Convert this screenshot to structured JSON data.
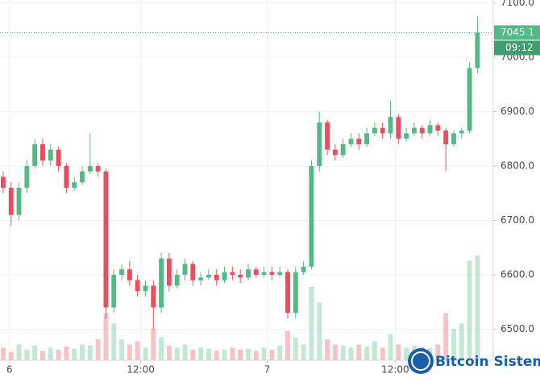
{
  "chart_data": {
    "type": "candlestick",
    "categories": [
      null,
      null,
      null,
      null,
      null,
      null,
      null,
      null,
      null,
      null,
      null,
      null,
      null,
      null,
      null,
      null,
      null,
      null,
      null,
      null,
      null,
      null,
      null,
      null,
      null,
      null,
      null,
      null,
      null,
      null,
      null,
      null,
      null,
      null,
      null,
      null,
      null,
      null,
      null,
      null,
      null,
      null,
      null,
      null,
      null,
      null,
      null,
      null,
      null,
      null,
      null,
      null,
      null,
      null,
      null,
      null,
      null,
      null,
      null,
      null,
      null
    ],
    "open": [
      6780,
      6760,
      6710,
      6760,
      6800,
      6840,
      6810,
      6830,
      6800,
      6760,
      6770,
      6790,
      6800,
      6790,
      6540,
      6600,
      6610,
      6590,
      6570,
      6580,
      6540,
      6630,
      6580,
      6600,
      6620,
      6590,
      6595,
      6600,
      6590,
      6605,
      6600,
      6595,
      6610,
      6600,
      6605,
      6600,
      6605,
      6530,
      6605,
      6615,
      6800,
      6880,
      6830,
      6820,
      6840,
      6850,
      6840,
      6860,
      6870,
      6860,
      6890,
      6850,
      6860,
      6870,
      6860,
      6875,
      6865,
      6840,
      6860,
      6865,
      6980
    ],
    "high": [
      6790,
      6770,
      6770,
      6810,
      6850,
      6850,
      6840,
      6835,
      6805,
      6780,
      6800,
      6860,
      6805,
      6795,
      6610,
      6620,
      6625,
      6600,
      6590,
      6590,
      6640,
      6640,
      6610,
      6630,
      6625,
      6605,
      6610,
      6610,
      6615,
      6615,
      6610,
      6620,
      6615,
      6615,
      6615,
      6615,
      6610,
      6615,
      6625,
      6810,
      6900,
      6885,
      6840,
      6850,
      6860,
      6860,
      6870,
      6880,
      6880,
      6920,
      6895,
      6870,
      6880,
      6875,
      6885,
      6880,
      6870,
      6865,
      6870,
      6990,
      7075
    ],
    "low": [
      6750,
      6690,
      6700,
      6750,
      6795,
      6800,
      6800,
      6790,
      6750,
      6755,
      6765,
      6785,
      6780,
      6520,
      6530,
      6590,
      6580,
      6560,
      6560,
      6500,
      6530,
      6570,
      6575,
      6590,
      6580,
      6580,
      6590,
      6580,
      6585,
      6590,
      6585,
      6590,
      6595,
      6595,
      6590,
      6595,
      6520,
      6520,
      6600,
      6610,
      6790,
      6820,
      6810,
      6815,
      6835,
      6830,
      6835,
      6855,
      6850,
      6850,
      6840,
      6845,
      6855,
      6850,
      6855,
      6855,
      6790,
      6835,
      6850,
      6860,
      6970
    ],
    "close": [
      6760,
      6710,
      6760,
      6800,
      6840,
      6810,
      6830,
      6800,
      6760,
      6770,
      6790,
      6800,
      6790,
      6540,
      6600,
      6610,
      6590,
      6570,
      6580,
      6540,
      6630,
      6580,
      6600,
      6620,
      6590,
      6595,
      6600,
      6590,
      6605,
      6600,
      6595,
      6610,
      6600,
      6605,
      6600,
      6605,
      6530,
      6605,
      6615,
      6800,
      6880,
      6830,
      6820,
      6840,
      6850,
      6840,
      6860,
      6870,
      6860,
      6890,
      6850,
      6860,
      6870,
      6860,
      6875,
      6865,
      6840,
      6860,
      6865,
      6980,
      7045
    ],
    "volume": [
      12,
      8,
      15,
      10,
      14,
      9,
      12,
      10,
      13,
      11,
      15,
      14,
      20,
      45,
      35,
      20,
      15,
      18,
      12,
      30,
      22,
      14,
      12,
      15,
      10,
      12,
      11,
      9,
      10,
      12,
      10,
      11,
      9,
      12,
      10,
      14,
      28,
      22,
      15,
      70,
      55,
      20,
      15,
      14,
      12,
      15,
      13,
      18,
      12,
      25,
      15,
      12,
      14,
      13,
      12,
      15,
      45,
      30,
      35,
      95,
      100
    ],
    "up_color": "#53b987",
    "down_color": "#eb4d5c",
    "xlim": [
      -0.4,
      62
    ],
    "xticks": [
      {
        "value": 0.8,
        "label": "6"
      },
      {
        "value": 17.4,
        "label": "12:00"
      },
      {
        "value": 33.4,
        "label": "7"
      },
      {
        "value": 49.6,
        "label": "12:00"
      }
    ],
    "ylim": [
      6443,
      7105
    ],
    "yticks": [
      {
        "value": 6500,
        "label": "6500.0"
      },
      {
        "value": 6600,
        "label": "6600.0"
      },
      {
        "value": 6700,
        "label": "6700.0"
      },
      {
        "value": 6800,
        "label": "6800.0"
      },
      {
        "value": 6900,
        "label": "6900.0"
      },
      {
        "value": 7000,
        "label": "7000.0"
      },
      {
        "value": 7100,
        "label": "7100.0"
      }
    ],
    "grid": true,
    "last_price": 7045.1,
    "countdown": "09:12",
    "watermark": "Bitcoin Sistemi"
  }
}
